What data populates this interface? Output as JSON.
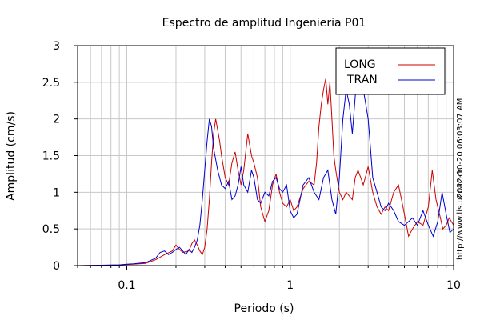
{
  "chart_data": {
    "type": "line",
    "title": "Espectro de amplitud Ingenieria P01",
    "xlabel": "Periodo (s)",
    "ylabel": "Amplitud (cm/s)",
    "xscale": "log",
    "xlim": [
      0.05,
      10
    ],
    "ylim": [
      0,
      3
    ],
    "xticks": [
      {
        "value": 0.1,
        "label": "0.1"
      },
      {
        "value": 1,
        "label": "1"
      },
      {
        "value": 10,
        "label": "10"
      }
    ],
    "yticks": [
      {
        "value": 0,
        "label": "0"
      },
      {
        "value": 0.5,
        "label": "0.5"
      },
      {
        "value": 1,
        "label": "1"
      },
      {
        "value": 1.5,
        "label": "1.5"
      },
      {
        "value": 2,
        "label": "2"
      },
      {
        "value": 2.5,
        "label": "2.5"
      },
      {
        "value": 3,
        "label": "3"
      }
    ],
    "grid": true,
    "legend_position": "top-right",
    "series": [
      {
        "name": "LONG",
        "color": "#cc0000",
        "points": [
          [
            0.05,
            0
          ],
          [
            0.07,
            0.005
          ],
          [
            0.09,
            0.01
          ],
          [
            0.1,
            0.015
          ],
          [
            0.11,
            0.02
          ],
          [
            0.13,
            0.03
          ],
          [
            0.15,
            0.08
          ],
          [
            0.17,
            0.15
          ],
          [
            0.19,
            0.2
          ],
          [
            0.2,
            0.28
          ],
          [
            0.21,
            0.22
          ],
          [
            0.22,
            0.18
          ],
          [
            0.24,
            0.2
          ],
          [
            0.25,
            0.3
          ],
          [
            0.26,
            0.35
          ],
          [
            0.27,
            0.28
          ],
          [
            0.28,
            0.2
          ],
          [
            0.29,
            0.15
          ],
          [
            0.3,
            0.25
          ],
          [
            0.31,
            0.5
          ],
          [
            0.32,
            0.9
          ],
          [
            0.33,
            1.4
          ],
          [
            0.34,
            1.8
          ],
          [
            0.35,
            2.0
          ],
          [
            0.36,
            1.85
          ],
          [
            0.37,
            1.7
          ],
          [
            0.38,
            1.5
          ],
          [
            0.4,
            1.2
          ],
          [
            0.42,
            1.1
          ],
          [
            0.44,
            1.4
          ],
          [
            0.46,
            1.55
          ],
          [
            0.48,
            1.3
          ],
          [
            0.5,
            1.1
          ],
          [
            0.52,
            1.3
          ],
          [
            0.55,
            1.8
          ],
          [
            0.58,
            1.5
          ],
          [
            0.6,
            1.4
          ],
          [
            0.63,
            1.2
          ],
          [
            0.66,
            0.8
          ],
          [
            0.7,
            0.6
          ],
          [
            0.74,
            0.75
          ],
          [
            0.78,
            1.1
          ],
          [
            0.82,
            1.25
          ],
          [
            0.86,
            1.0
          ],
          [
            0.9,
            0.85
          ],
          [
            0.95,
            0.8
          ],
          [
            1.0,
            0.9
          ],
          [
            1.05,
            0.75
          ],
          [
            1.1,
            0.8
          ],
          [
            1.2,
            1.05
          ],
          [
            1.3,
            1.15
          ],
          [
            1.4,
            1.1
          ],
          [
            1.45,
            1.4
          ],
          [
            1.5,
            1.9
          ],
          [
            1.55,
            2.2
          ],
          [
            1.6,
            2.4
          ],
          [
            1.65,
            2.55
          ],
          [
            1.7,
            2.2
          ],
          [
            1.75,
            2.5
          ],
          [
            1.8,
            2.0
          ],
          [
            1.85,
            1.5
          ],
          [
            1.9,
            1.3
          ],
          [
            2.0,
            1.0
          ],
          [
            2.1,
            0.9
          ],
          [
            2.2,
            1.0
          ],
          [
            2.4,
            0.9
          ],
          [
            2.5,
            1.2
          ],
          [
            2.6,
            1.3
          ],
          [
            2.7,
            1.2
          ],
          [
            2.8,
            1.1
          ],
          [
            3.0,
            1.35
          ],
          [
            3.2,
            1.0
          ],
          [
            3.4,
            0.8
          ],
          [
            3.6,
            0.7
          ],
          [
            3.8,
            0.8
          ],
          [
            4.0,
            0.75
          ],
          [
            4.3,
            1.0
          ],
          [
            4.6,
            1.1
          ],
          [
            4.8,
            0.9
          ],
          [
            5.0,
            0.7
          ],
          [
            5.3,
            0.4
          ],
          [
            5.6,
            0.5
          ],
          [
            6.0,
            0.6
          ],
          [
            6.5,
            0.55
          ],
          [
            7.0,
            0.8
          ],
          [
            7.4,
            1.3
          ],
          [
            7.8,
            0.9
          ],
          [
            8.2,
            0.7
          ],
          [
            8.6,
            0.5
          ],
          [
            9.0,
            0.55
          ],
          [
            9.4,
            0.65
          ],
          [
            9.7,
            0.6
          ],
          [
            10,
            0.55
          ]
        ]
      },
      {
        "name": "TRAN",
        "color": "#0000cc",
        "points": [
          [
            0.05,
            0
          ],
          [
            0.07,
            0.005
          ],
          [
            0.09,
            0.01
          ],
          [
            0.1,
            0.02
          ],
          [
            0.11,
            0.025
          ],
          [
            0.13,
            0.04
          ],
          [
            0.15,
            0.1
          ],
          [
            0.16,
            0.18
          ],
          [
            0.17,
            0.2
          ],
          [
            0.18,
            0.15
          ],
          [
            0.19,
            0.18
          ],
          [
            0.2,
            0.22
          ],
          [
            0.21,
            0.25
          ],
          [
            0.22,
            0.2
          ],
          [
            0.23,
            0.15
          ],
          [
            0.24,
            0.22
          ],
          [
            0.25,
            0.18
          ],
          [
            0.26,
            0.25
          ],
          [
            0.27,
            0.35
          ],
          [
            0.28,
            0.55
          ],
          [
            0.29,
            0.9
          ],
          [
            0.3,
            1.3
          ],
          [
            0.31,
            1.7
          ],
          [
            0.32,
            2.0
          ],
          [
            0.33,
            1.9
          ],
          [
            0.34,
            1.6
          ],
          [
            0.36,
            1.3
          ],
          [
            0.38,
            1.1
          ],
          [
            0.4,
            1.05
          ],
          [
            0.42,
            1.15
          ],
          [
            0.44,
            0.9
          ],
          [
            0.46,
            0.95
          ],
          [
            0.48,
            1.1
          ],
          [
            0.5,
            1.35
          ],
          [
            0.52,
            1.1
          ],
          [
            0.55,
            1.0
          ],
          [
            0.58,
            1.3
          ],
          [
            0.6,
            1.2
          ],
          [
            0.63,
            0.9
          ],
          [
            0.66,
            0.85
          ],
          [
            0.7,
            1.0
          ],
          [
            0.74,
            0.95
          ],
          [
            0.78,
            1.15
          ],
          [
            0.82,
            1.2
          ],
          [
            0.86,
            1.05
          ],
          [
            0.9,
            1.0
          ],
          [
            0.95,
            1.1
          ],
          [
            1.0,
            0.75
          ],
          [
            1.05,
            0.65
          ],
          [
            1.1,
            0.7
          ],
          [
            1.2,
            1.1
          ],
          [
            1.3,
            1.2
          ],
          [
            1.4,
            1.0
          ],
          [
            1.5,
            0.9
          ],
          [
            1.6,
            1.2
          ],
          [
            1.7,
            1.3
          ],
          [
            1.8,
            0.9
          ],
          [
            1.9,
            0.7
          ],
          [
            2.0,
            1.2
          ],
          [
            2.1,
            2.0
          ],
          [
            2.2,
            2.4
          ],
          [
            2.3,
            2.2
          ],
          [
            2.4,
            1.8
          ],
          [
            2.5,
            2.3
          ],
          [
            2.6,
            2.9
          ],
          [
            2.7,
            2.7
          ],
          [
            2.8,
            2.4
          ],
          [
            2.9,
            2.2
          ],
          [
            3.0,
            2.0
          ],
          [
            3.1,
            1.6
          ],
          [
            3.2,
            1.2
          ],
          [
            3.4,
            1.0
          ],
          [
            3.6,
            0.8
          ],
          [
            3.8,
            0.75
          ],
          [
            4.0,
            0.85
          ],
          [
            4.3,
            0.75
          ],
          [
            4.6,
            0.6
          ],
          [
            5.0,
            0.55
          ],
          [
            5.3,
            0.6
          ],
          [
            5.6,
            0.65
          ],
          [
            6.0,
            0.55
          ],
          [
            6.5,
            0.75
          ],
          [
            7.0,
            0.55
          ],
          [
            7.5,
            0.4
          ],
          [
            8.0,
            0.6
          ],
          [
            8.5,
            1.0
          ],
          [
            9.0,
            0.7
          ],
          [
            9.5,
            0.45
          ],
          [
            10,
            0.5
          ]
        ]
      }
    ]
  },
  "side_annotations": {
    "timestamp": "2022-10-20 06:03:07 AM",
    "url": "http://www.lis.ucr.ac.cr"
  }
}
